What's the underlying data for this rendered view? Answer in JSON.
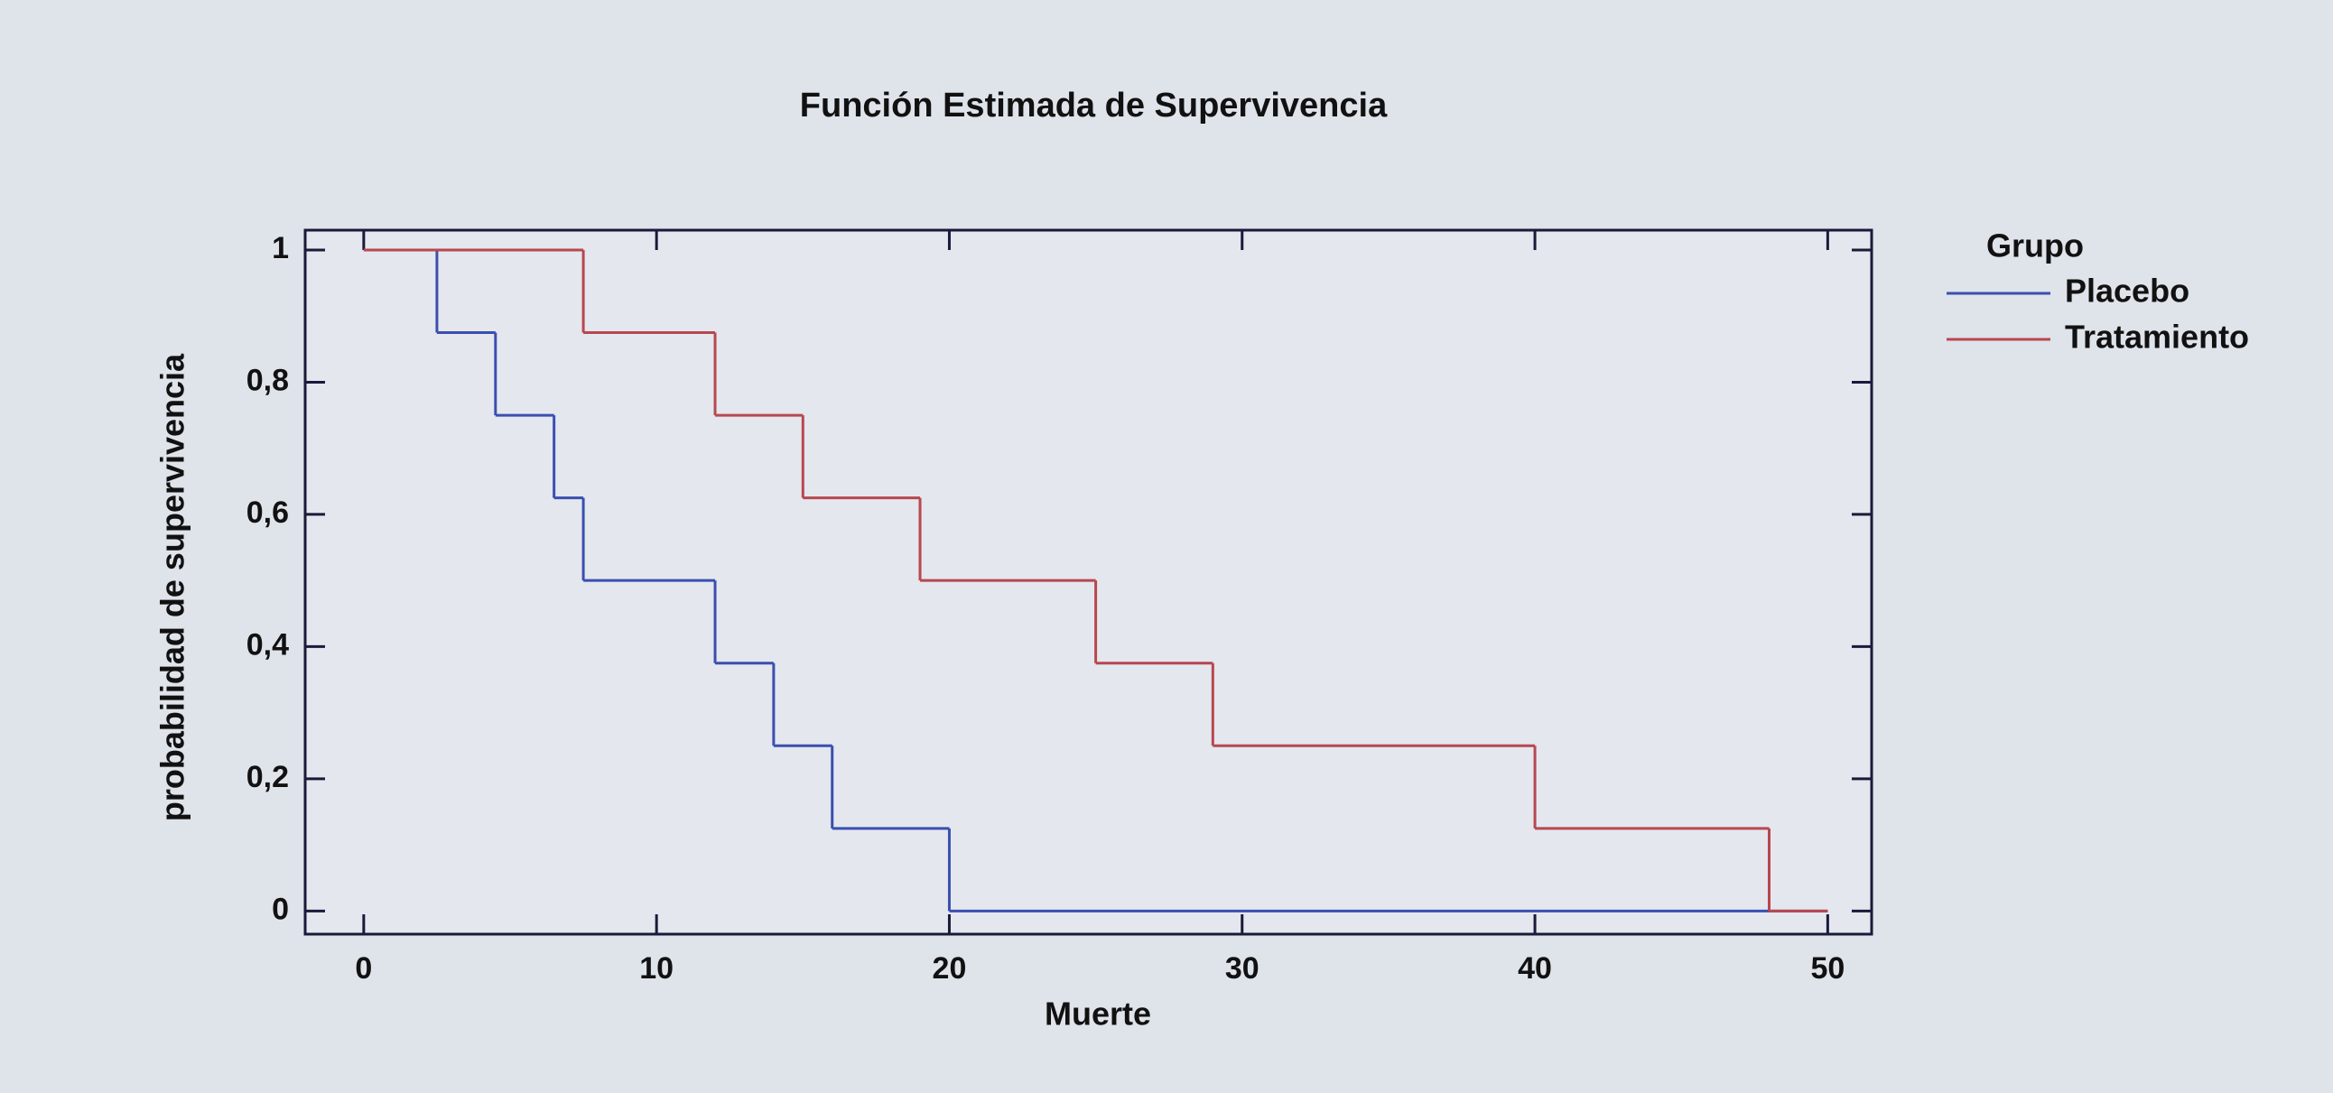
{
  "chart_data": {
    "type": "step",
    "title": "Función Estimada de Supervivencia",
    "x_label": "Muerte",
    "y_label": "probabilidad de supervivencia",
    "legend_title": "Grupo",
    "legend_position": "right",
    "grid": false,
    "xlim": [
      -2,
      51.5
    ],
    "ylim": [
      -0.035,
      1.03
    ],
    "xticks": [
      0,
      10,
      20,
      30,
      40,
      50
    ],
    "yticks": [
      0,
      {
        "value": 0.2,
        "label": "0,2"
      },
      {
        "value": 0.4,
        "label": "0,4"
      },
      {
        "value": 0.6,
        "label": "0,6"
      },
      {
        "value": 0.8,
        "label": "0,8"
      },
      1
    ],
    "series": [
      {
        "name": "Placebo",
        "color": "#3a4fb0",
        "x": [
          0,
          2.5,
          4.5,
          6.5,
          7.5,
          12,
          14,
          16,
          20,
          50
        ],
        "values": [
          1,
          0.875,
          0.75,
          0.625,
          0.5,
          0.375,
          0.25,
          0.125,
          0,
          0
        ]
      },
      {
        "name": "Tratamiento",
        "color": "#b8474f",
        "x": [
          0,
          7.5,
          12,
          15,
          19,
          25,
          29,
          40,
          48,
          50
        ],
        "values": [
          1,
          0.875,
          0.75,
          0.625,
          0.5,
          0.375,
          0.25,
          0.125,
          0,
          0
        ]
      }
    ]
  }
}
